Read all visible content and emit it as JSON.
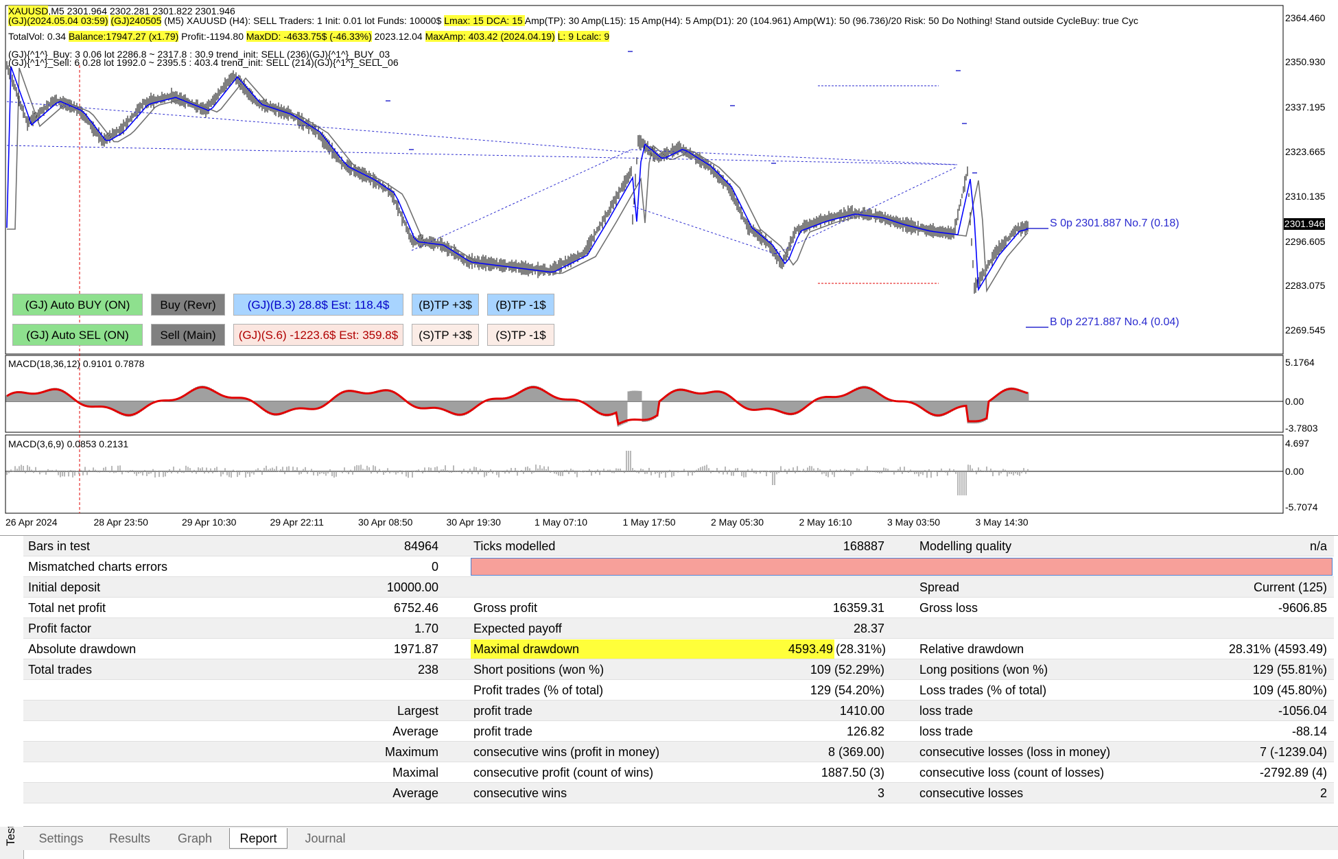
{
  "overlay": {
    "line1": [
      {
        "t": "XAUUSD",
        "hl": true
      },
      {
        "t": ",M5  2301.964 2302.281 2301.822 2301.946",
        "hl": false
      }
    ],
    "line2": [
      {
        "t": "(GJ)(2024.05.04 03:59)",
        "hl": true
      },
      {
        "t": "  ",
        "hl": false
      },
      {
        "t": "(GJ)240505",
        "hl": true
      },
      {
        "t": "   (M5) XAUUSD    (H4): SELL    Traders: 1    Init: 0.01 lot    Funds: 10000$   ",
        "hl": false
      },
      {
        "t": " Lmax: 15   DCA: 15 ",
        "hl": true
      },
      {
        "t": "   Amp(TP): 30    Amp(L15): 15    Amp(H4): 5    Amp(D1): 20 (104.961)    Amp(W1): 50 (96.736)/20    Risk: 50    Do Nothing! Stand outside    CycleBuy: true    Cyc",
        "hl": false
      }
    ],
    "line3": [
      {
        "t": "TotalVol: 0.34   ",
        "hl": false
      },
      {
        "t": "Balance:17947.27 (x1.79)",
        "hl": true
      },
      {
        "t": "    Profit:-1194.80    ",
        "hl": false
      },
      {
        "t": "MaxDD: -4633.75$ (-46.33%)",
        "hl": true
      },
      {
        "t": " 2023.12.04    ",
        "hl": false
      },
      {
        "t": "MaxAmp: 403.42 (2024.04.19)",
        "hl": true
      },
      {
        "t": "   ",
        "hl": false
      },
      {
        "t": " L: 9    Lcalc: 9 ",
        "hl": true
      }
    ],
    "line4": "(GJ){^1^}_Buy:  3   0.06 lot     2286.8 ~ 2317.8 :  30.9     trend_init: SELL     (236)(GJ){^1^}_BUY_03",
    "line5": "(GJ){^1^}_Sell:  6   0.28 lot     1992.0 ~ 2395.5 : 403.4     trend_init: SELL     (214)(GJ){^1^}_SELL_06",
    "sell_label": "S  0p  2301.887  No.7 (0.18)",
    "buy_label": "B  0p  2271.887  No.4 (0.04)"
  },
  "buttons": {
    "auto_buy": "(GJ) Auto BUY (ON)",
    "buy_revr": "Buy (Revr)",
    "buy_info": "(GJ)(B.3)    28.8$  Est: 118.4$",
    "buy_tp_plus": "(B)TP +3$",
    "buy_tp_minus": "(B)TP -1$",
    "auto_sell": "(GJ) Auto SEL (ON)",
    "sell_main": "Sell (Main)",
    "sell_info": "(GJ)(S.6) -1223.6$  Est: 359.8$",
    "sell_tp_plus": "(S)TP +3$",
    "sell_tp_minus": "(S)TP -1$"
  },
  "price_axis": [
    "2364.460",
    "2350.930",
    "2337.195",
    "2323.665",
    "2310.135",
    "2296.605",
    "2283.075",
    "2269.545"
  ],
  "current_price": "2301.946",
  "macd1": {
    "label": "MACD(18,36,12) 0.9101 0.7878",
    "top": "5.1764",
    "zero": "0.00",
    "bottom": "-3.7803"
  },
  "macd2": {
    "label": "MACD(3,6,9) 0.0853 0.2131",
    "top": "4.697",
    "zero": "0.00",
    "bottom": "-5.7074"
  },
  "time_axis": [
    "26 Apr 2024",
    "28 Apr 23:50",
    "29 Apr 10:30",
    "29 Apr 22:11",
    "30 Apr 08:50",
    "30 Apr 19:30",
    "1 May 07:10",
    "1 May 17:50",
    "2 May 05:30",
    "2 May 16:10",
    "3 May 03:50",
    "3 May 14:30"
  ],
  "report": {
    "rows": [
      {
        "a": "Bars in test",
        "av": "84964",
        "b": "Ticks modelled",
        "bv": "168887",
        "c": "Modelling quality",
        "cv": "n/a"
      },
      {
        "a": "Mismatched charts errors",
        "av": "0",
        "b": "",
        "bv": "",
        "c": "",
        "cv": "",
        "errorbar": true
      },
      {
        "a": "Initial deposit",
        "av": "10000.00",
        "b": "",
        "bv": "",
        "c": "Spread",
        "cv": "Current (125)"
      },
      {
        "a": "Total net profit",
        "av": "6752.46",
        "b": "Gross profit",
        "bv": "16359.31",
        "c": "Gross loss",
        "cv": "-9606.85"
      },
      {
        "a": "Profit factor",
        "av": "1.70",
        "b": "Expected payoff",
        "bv": "28.37",
        "c": "",
        "cv": ""
      },
      {
        "a": "Absolute drawdown",
        "av": "1971.87",
        "b": "Maximal drawdown",
        "bv": "4593.49",
        "bv2": "(28.31%)",
        "c": "Relative drawdown",
        "cv": "28.31% (4593.49)",
        "hl": true
      },
      {
        "a": "Total trades",
        "av": "238",
        "b": "Short positions (won %)",
        "bv": "109 (52.29%)",
        "c": "Long positions (won %)",
        "cv": "129 (55.81%)"
      },
      {
        "a": "",
        "av": "",
        "b": "Profit trades (% of total)",
        "bv": "129 (54.20%)",
        "c": "Loss trades (% of total)",
        "cv": "109 (45.80%)"
      },
      {
        "a": "Largest",
        "av": "",
        "b": "profit trade",
        "bv": "1410.00",
        "c": "loss trade",
        "cv": "-1056.04",
        "aright": true
      },
      {
        "a": "Average",
        "av": "",
        "b": "profit trade",
        "bv": "126.82",
        "c": "loss trade",
        "cv": "-88.14",
        "aright": true
      },
      {
        "a": "Maximum",
        "av": "",
        "b": "consecutive wins (profit in money)",
        "bv": "8 (369.00)",
        "c": "consecutive losses (loss in money)",
        "cv": "7 (-1239.04)",
        "aright": true
      },
      {
        "a": "Maximal",
        "av": "",
        "b": "consecutive profit (count of wins)",
        "bv": "1887.50 (3)",
        "c": "consecutive loss (count of losses)",
        "cv": "-2792.89 (4)",
        "aright": true
      },
      {
        "a": "Average",
        "av": "",
        "b": "consecutive wins",
        "bv": "3",
        "c": "consecutive losses",
        "cv": "2",
        "aright": true
      }
    ]
  },
  "tabs": [
    "Settings",
    "Results",
    "Graph",
    "Report",
    "Journal"
  ],
  "active_tab": "Report",
  "side_label": "Tester",
  "close_symbol": "✕",
  "colors": {
    "highlight": "#ffff3a",
    "macd_signal": "#e00000",
    "ma_blue": "#0000ff",
    "ma_gray": "#707070",
    "error_bar": "#f7a09a"
  }
}
